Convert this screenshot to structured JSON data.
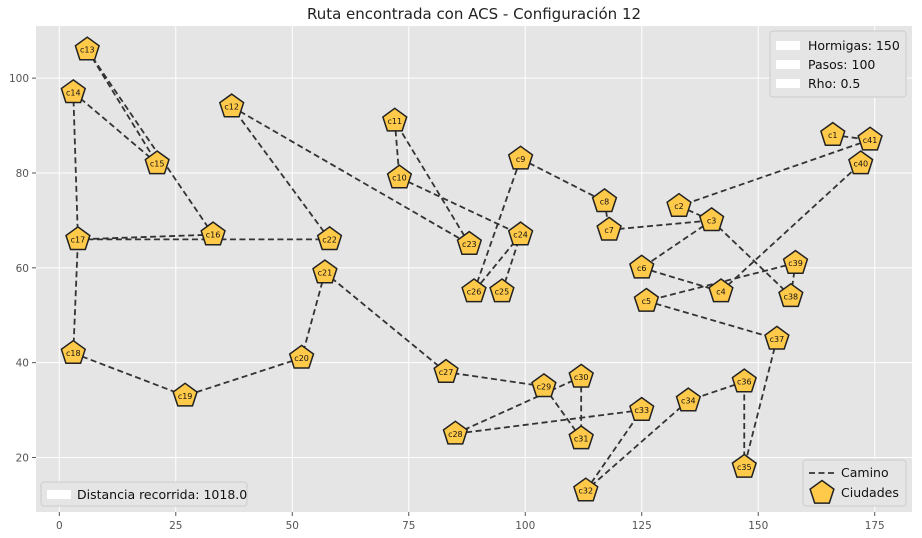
{
  "chart_data": {
    "type": "scatter",
    "title": "Ruta encontrada con ACS - Configuración 12",
    "xlabel": "",
    "ylabel": "",
    "xlim": [
      -5,
      183
    ],
    "ylim": [
      8.5,
      111
    ],
    "xticks": [
      0,
      25,
      50,
      75,
      100,
      125,
      150,
      175
    ],
    "yticks": [
      20,
      40,
      60,
      80,
      100
    ],
    "grid": true,
    "colors": {
      "background": "#e5e5e5",
      "grid": "#ffffff",
      "path": "#333333",
      "city_fill": "#ffc94a",
      "city_edge": "#222222"
    },
    "cities": [
      {
        "name": "c1",
        "x": 166,
        "y": 88
      },
      {
        "name": "c2",
        "x": 133,
        "y": 73
      },
      {
        "name": "c3",
        "x": 140,
        "y": 70
      },
      {
        "name": "c4",
        "x": 142,
        "y": 55
      },
      {
        "name": "c5",
        "x": 126,
        "y": 53
      },
      {
        "name": "c6",
        "x": 125,
        "y": 60
      },
      {
        "name": "c7",
        "x": 118,
        "y": 68
      },
      {
        "name": "c8",
        "x": 117,
        "y": 74
      },
      {
        "name": "c9",
        "x": 99,
        "y": 83
      },
      {
        "name": "c10",
        "x": 73,
        "y": 79
      },
      {
        "name": "c11",
        "x": 72,
        "y": 91
      },
      {
        "name": "c12",
        "x": 37,
        "y": 94
      },
      {
        "name": "c13",
        "x": 6,
        "y": 106
      },
      {
        "name": "c14",
        "x": 3,
        "y": 97
      },
      {
        "name": "c15",
        "x": 21,
        "y": 82
      },
      {
        "name": "c16",
        "x": 33,
        "y": 67
      },
      {
        "name": "c17",
        "x": 4,
        "y": 66
      },
      {
        "name": "c18",
        "x": 3,
        "y": 42
      },
      {
        "name": "c19",
        "x": 27,
        "y": 33
      },
      {
        "name": "c20",
        "x": 52,
        "y": 41
      },
      {
        "name": "c21",
        "x": 57,
        "y": 59
      },
      {
        "name": "c22",
        "x": 58,
        "y": 66
      },
      {
        "name": "c23",
        "x": 88,
        "y": 65
      },
      {
        "name": "c24",
        "x": 99,
        "y": 67
      },
      {
        "name": "c25",
        "x": 95,
        "y": 55
      },
      {
        "name": "c26",
        "x": 89,
        "y": 55
      },
      {
        "name": "c27",
        "x": 83,
        "y": 38
      },
      {
        "name": "c28",
        "x": 85,
        "y": 25
      },
      {
        "name": "c29",
        "x": 104,
        "y": 35
      },
      {
        "name": "c30",
        "x": 112,
        "y": 37
      },
      {
        "name": "c31",
        "x": 112,
        "y": 24
      },
      {
        "name": "c32",
        "x": 113,
        "y": 13
      },
      {
        "name": "c33",
        "x": 125,
        "y": 30
      },
      {
        "name": "c34",
        "x": 135,
        "y": 32
      },
      {
        "name": "c35",
        "x": 147,
        "y": 18
      },
      {
        "name": "c36",
        "x": 147,
        "y": 36
      },
      {
        "name": "c37",
        "x": 154,
        "y": 45
      },
      {
        "name": "c38",
        "x": 157,
        "y": 54
      },
      {
        "name": "c39",
        "x": 158,
        "y": 61
      },
      {
        "name": "c40",
        "x": 172,
        "y": 82
      },
      {
        "name": "c41",
        "x": 174,
        "y": 87
      }
    ],
    "route": [
      "c1",
      "c41",
      "c2",
      "c3",
      "c38",
      "c39",
      "c5",
      "c37",
      "c35",
      "c36",
      "c34",
      "c32",
      "c33",
      "c28",
      "c30",
      "c31",
      "c29",
      "c27",
      "c21",
      "c20",
      "c19",
      "c18",
      "c17",
      "c22",
      "c12",
      "c23",
      "c11",
      "c10",
      "c24",
      "c26",
      "c9",
      "c8",
      "c7",
      "c3",
      "c6",
      "c4",
      "c40"
    ],
    "route_extra": [
      [
        "c14",
        "c15"
      ],
      [
        "c13",
        "c15"
      ],
      [
        "c13",
        "c16"
      ],
      [
        "c16",
        "c17"
      ],
      [
        "c17",
        "c14"
      ],
      [
        "c25",
        "c24"
      ]
    ],
    "legend_params": [
      "Hormigas: 150",
      "Pasos: 100",
      "Rho: 0.5"
    ],
    "legend_series": [
      "Camino",
      "Ciudades"
    ],
    "distance_label": "Distancia recorrida: 1018.0",
    "legend_params_position": "top-right",
    "legend_series_position": "bottom-right",
    "distance_position": "bottom-left"
  }
}
